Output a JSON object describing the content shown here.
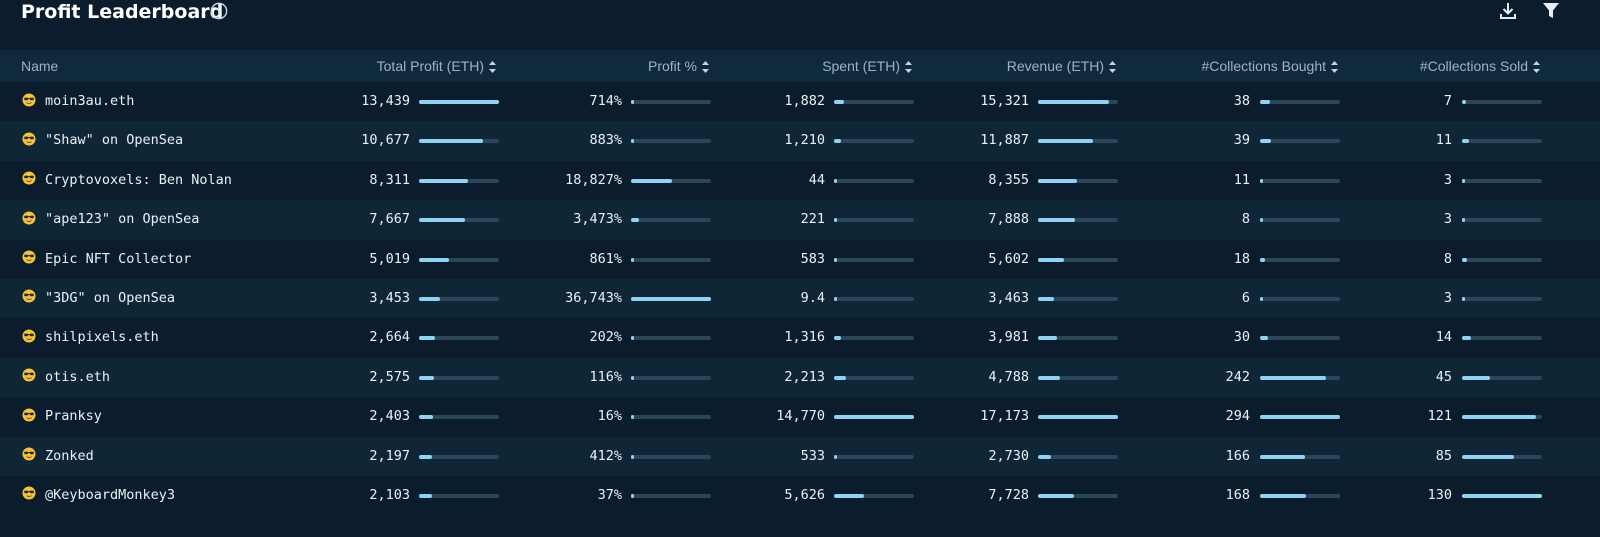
{
  "header": {
    "title": "Profit Leaderboard",
    "info_icon": "info-circle-icon",
    "download_icon": "download-icon",
    "filter_icon": "filter-icon"
  },
  "columns": [
    {
      "key": "name",
      "label": "Name"
    },
    {
      "key": "total_profit",
      "label": "Total Profit (ETH)"
    },
    {
      "key": "profit_pct",
      "label": "Profit %"
    },
    {
      "key": "spent",
      "label": "Spent (ETH)"
    },
    {
      "key": "revenue",
      "label": "Revenue (ETH)"
    },
    {
      "key": "bought",
      "label": "#Collections Bought"
    },
    {
      "key": "sold",
      "label": "#Collections Sold"
    }
  ],
  "colors": {
    "background": "#0b1d2c",
    "row_alt": "#0f2637",
    "header_bg": "#102a3d",
    "bar_fill": "#8fd3f4",
    "bar_track": "#2c4659"
  },
  "rows": [
    {
      "name": "moin3au.eth",
      "total_profit": "13,439",
      "total_profit_v": 13439,
      "profit_pct": "714%",
      "profit_pct_v": 714,
      "spent": "1,882",
      "spent_v": 1882,
      "revenue": "15,321",
      "revenue_v": 15321,
      "bought": "38",
      "bought_v": 38,
      "sold": "7",
      "sold_v": 7
    },
    {
      "name": "\"Shaw\" on OpenSea",
      "total_profit": "10,677",
      "total_profit_v": 10677,
      "profit_pct": "883%",
      "profit_pct_v": 883,
      "spent": "1,210",
      "spent_v": 1210,
      "revenue": "11,887",
      "revenue_v": 11887,
      "bought": "39",
      "bought_v": 39,
      "sold": "11",
      "sold_v": 11
    },
    {
      "name": "Cryptovoxels: Ben Nolan",
      "total_profit": "8,311",
      "total_profit_v": 8311,
      "profit_pct": "18,827%",
      "profit_pct_v": 18827,
      "spent": "44",
      "spent_v": 44,
      "revenue": "8,355",
      "revenue_v": 8355,
      "bought": "11",
      "bought_v": 11,
      "sold": "3",
      "sold_v": 3
    },
    {
      "name": "\"ape123\" on OpenSea",
      "total_profit": "7,667",
      "total_profit_v": 7667,
      "profit_pct": "3,473%",
      "profit_pct_v": 3473,
      "spent": "221",
      "spent_v": 221,
      "revenue": "7,888",
      "revenue_v": 7888,
      "bought": "8",
      "bought_v": 8,
      "sold": "3",
      "sold_v": 3
    },
    {
      "name": "Epic NFT Collector",
      "total_profit": "5,019",
      "total_profit_v": 5019,
      "profit_pct": "861%",
      "profit_pct_v": 861,
      "spent": "583",
      "spent_v": 583,
      "revenue": "5,602",
      "revenue_v": 5602,
      "bought": "18",
      "bought_v": 18,
      "sold": "8",
      "sold_v": 8
    },
    {
      "name": "\"3DG\" on OpenSea",
      "total_profit": "3,453",
      "total_profit_v": 3453,
      "profit_pct": "36,743%",
      "profit_pct_v": 36743,
      "spent": "9.4",
      "spent_v": 9.4,
      "revenue": "3,463",
      "revenue_v": 3463,
      "bought": "6",
      "bought_v": 6,
      "sold": "3",
      "sold_v": 3
    },
    {
      "name": "shilpixels.eth",
      "total_profit": "2,664",
      "total_profit_v": 2664,
      "profit_pct": "202%",
      "profit_pct_v": 202,
      "spent": "1,316",
      "spent_v": 1316,
      "revenue": "3,981",
      "revenue_v": 3981,
      "bought": "30",
      "bought_v": 30,
      "sold": "14",
      "sold_v": 14
    },
    {
      "name": "otis.eth",
      "total_profit": "2,575",
      "total_profit_v": 2575,
      "profit_pct": "116%",
      "profit_pct_v": 116,
      "spent": "2,213",
      "spent_v": 2213,
      "revenue": "4,788",
      "revenue_v": 4788,
      "bought": "242",
      "bought_v": 242,
      "sold": "45",
      "sold_v": 45
    },
    {
      "name": "Pranksy",
      "total_profit": "2,403",
      "total_profit_v": 2403,
      "profit_pct": "16%",
      "profit_pct_v": 16,
      "spent": "14,770",
      "spent_v": 14770,
      "revenue": "17,173",
      "revenue_v": 17173,
      "bought": "294",
      "bought_v": 294,
      "sold": "121",
      "sold_v": 121
    },
    {
      "name": "Zonked",
      "total_profit": "2,197",
      "total_profit_v": 2197,
      "profit_pct": "412%",
      "profit_pct_v": 412,
      "spent": "533",
      "spent_v": 533,
      "revenue": "2,730",
      "revenue_v": 2730,
      "bought": "166",
      "bought_v": 166,
      "sold": "85",
      "sold_v": 85
    },
    {
      "name": "@KeyboardMonkey3",
      "total_profit": "2,103",
      "total_profit_v": 2103,
      "profit_pct": "37%",
      "profit_pct_v": 37,
      "spent": "5,626",
      "spent_v": 5626,
      "revenue": "7,728",
      "revenue_v": 7728,
      "bought": "168",
      "bought_v": 168,
      "sold": "130",
      "sold_v": 130
    }
  ]
}
